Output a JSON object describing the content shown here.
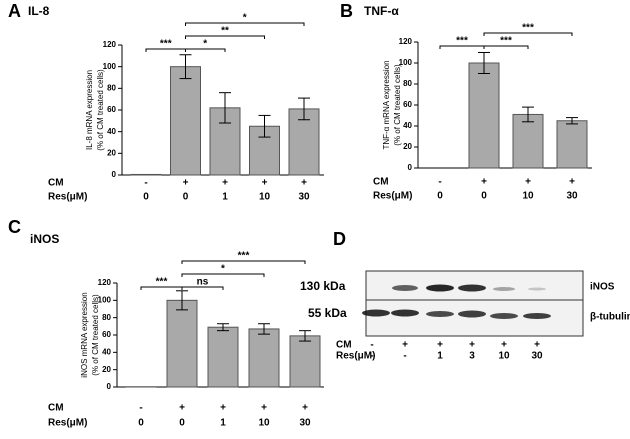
{
  "chart_data": [
    {
      "type": "bar",
      "panel_label": "A",
      "title": "IL-8",
      "ylabel": [
        "IL-8 mRNA expression",
        "(% of CM treated cells)"
      ],
      "row_labels": [
        "CM",
        "Res(μM)"
      ],
      "cm_row": [
        "-",
        "+",
        "+",
        "+",
        "+"
      ],
      "categories": [
        "0",
        "0",
        "1",
        "10",
        "30"
      ],
      "values": [
        0.5,
        100,
        62,
        45,
        61
      ],
      "errors": [
        0,
        11,
        14,
        10,
        10
      ],
      "color": "#a9a9a9",
      "ylim": [
        0,
        120
      ],
      "yticks": [
        0,
        20,
        40,
        60,
        80,
        100,
        120
      ],
      "significance": [
        {
          "between": [
            0,
            1
          ],
          "label": "***"
        },
        {
          "between": [
            1,
            2
          ],
          "label": "*"
        },
        {
          "between": [
            1,
            3
          ],
          "label": "**"
        },
        {
          "between": [
            1,
            4
          ],
          "label": "*"
        }
      ]
    },
    {
      "type": "bar",
      "panel_label": "B",
      "title": "TNF-α",
      "ylabel": [
        "TNF-α mRNA expression",
        "(% of CM treated cells)"
      ],
      "row_labels": [
        "CM",
        "Res(μM)"
      ],
      "cm_row": [
        "-",
        "+",
        "+",
        "+"
      ],
      "categories": [
        "0",
        "0",
        "10",
        "30"
      ],
      "values": [
        0,
        100,
        51,
        45
      ],
      "errors": [
        0,
        10,
        7,
        3
      ],
      "color": "#a9a9a9",
      "ylim": [
        0,
        120
      ],
      "yticks": [
        0,
        20,
        40,
        60,
        80,
        100,
        120
      ],
      "significance": [
        {
          "between": [
            0,
            1
          ],
          "label": "***"
        },
        {
          "between": [
            1,
            2
          ],
          "label": "***"
        },
        {
          "between": [
            1,
            3
          ],
          "label": "***"
        }
      ]
    },
    {
      "type": "bar",
      "panel_label": "C",
      "title": "iNOS",
      "ylabel": [
        "iNOS mRNA expression",
        "(% of CM treated cells)"
      ],
      "row_labels": [
        "CM",
        "Res(μM)"
      ],
      "cm_row": [
        "-",
        "+",
        "+",
        "+",
        "+"
      ],
      "categories": [
        "0",
        "0",
        "1",
        "10",
        "30"
      ],
      "values": [
        0.3,
        100,
        69,
        67,
        59
      ],
      "errors": [
        0,
        11,
        4,
        6,
        6
      ],
      "color": "#a9a9a9",
      "ylim": [
        0,
        120
      ],
      "yticks": [
        0,
        20,
        40,
        60,
        80,
        100,
        120
      ],
      "significance": [
        {
          "between": [
            0,
            1
          ],
          "label": "***"
        },
        {
          "between": [
            1,
            2
          ],
          "label": "ns"
        },
        {
          "between": [
            1,
            3
          ],
          "label": "*"
        },
        {
          "between": [
            1,
            4
          ],
          "label": "***"
        }
      ]
    }
  ],
  "blot": {
    "panel_label": "D",
    "markers": [
      "130 kDa",
      "55 kDa"
    ],
    "proteins": [
      "iNOS",
      "β-tubulin"
    ],
    "row_labels": [
      "CM",
      "Res(μM)"
    ],
    "cm_row": [
      "-",
      "+",
      "+",
      "+",
      "+",
      "+"
    ],
    "res_row": [
      "-",
      "-",
      "1",
      "3",
      "10",
      "30"
    ]
  }
}
